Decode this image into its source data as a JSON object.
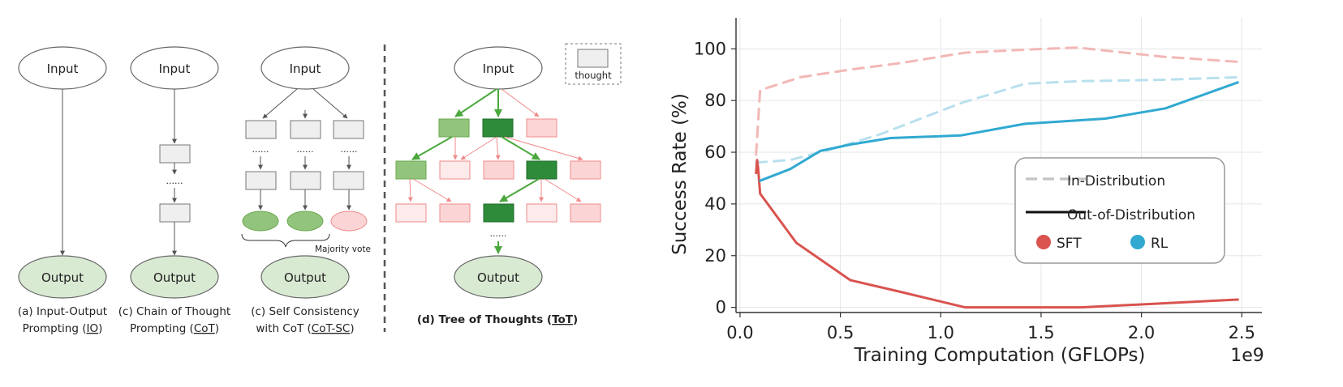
{
  "diagram": {
    "input_label": "Input",
    "output_label": "Output",
    "thought_legend": "thought",
    "majority_vote": "Majority vote",
    "dots": "......",
    "captions": {
      "a": {
        "line1": "(a) Input-Output",
        "line2_pre": "Prompting (",
        "line2_u": "IO",
        "line2_post": ")"
      },
      "b": {
        "line1": "(c) Chain of Thought",
        "line2_pre": "Prompting (",
        "line2_u": "CoT",
        "line2_post": ")"
      },
      "c": {
        "line1": "(c) Self Consistency",
        "line2_pre": "with CoT (",
        "line2_u": "CoT-SC",
        "line2_post": ")"
      },
      "d": {
        "pre": "(d) Tree of Thoughts (",
        "u": "ToT",
        "post": ")"
      }
    },
    "colors": {
      "io_fill": "#d9ead3",
      "box_fill": "#efefef",
      "good_dark": "#2e8b3a",
      "good_light": "#93c47d",
      "bad_fill": "#fbd5d5",
      "bad_light_fill": "#fdeaea",
      "bad_stroke": "#f08a8a",
      "green_arrow": "#4aa83c"
    }
  },
  "chart_data": {
    "type": "line",
    "xlabel": "Training Computation (GFLOPs)",
    "ylabel": "Success Rate (%)",
    "x_offset_label": "1e9",
    "xlim": [
      -0.02,
      2.6
    ],
    "ylim": [
      -2,
      112
    ],
    "xticks": [
      "0.0",
      "0.5",
      "1.0",
      "1.5",
      "2.0",
      "2.5"
    ],
    "xtick_values": [
      0.0,
      0.5,
      1.0,
      1.5,
      2.0,
      2.5
    ],
    "yticks": [
      "0",
      "20",
      "40",
      "60",
      "80",
      "100"
    ],
    "ytick_values": [
      0,
      20,
      40,
      60,
      80,
      100
    ],
    "grid": true,
    "legend": {
      "position": "center-right",
      "entries": [
        {
          "label": "In-Distribution",
          "style": "dashed"
        },
        {
          "label": "Out-of-Distribution",
          "style": "solid"
        },
        {
          "label": "SFT",
          "color": "#d9534f",
          "marker": "circle"
        },
        {
          "label": "RL",
          "color": "#31a9d1",
          "marker": "circle"
        }
      ]
    },
    "series": [
      {
        "name": "SFT",
        "style": "dashed",
        "color": "#f2b8b6",
        "x": [
          0.08,
          0.1,
          0.3,
          0.55,
          0.8,
          1.12,
          1.45,
          1.68,
          2.1,
          2.48
        ],
        "y": [
          59,
          84,
          89,
          92,
          94.5,
          98.5,
          99.8,
          100.5,
          97,
          95
        ]
      },
      {
        "name": "RL",
        "style": "dashed",
        "color": "#b9e0ee",
        "x": [
          0.08,
          0.25,
          0.45,
          0.7,
          1.1,
          1.42,
          1.7,
          2.1,
          2.48
        ],
        "y": [
          56,
          57,
          61,
          67,
          79,
          86.5,
          87.5,
          88,
          89
        ]
      },
      {
        "name": "SFT",
        "style": "solid",
        "color": "#d9534f",
        "x": [
          0.08,
          0.085,
          0.09,
          0.1,
          0.28,
          0.55,
          0.8,
          1.12,
          1.45,
          1.7,
          2.1,
          2.48
        ],
        "y": [
          52,
          57,
          54,
          44,
          25,
          10.5,
          6,
          0,
          0,
          0,
          1.5,
          3
        ]
      },
      {
        "name": "RL",
        "style": "solid",
        "color": "#31a9d1",
        "x": [
          0.1,
          0.25,
          0.4,
          0.55,
          0.75,
          1.1,
          1.42,
          1.82,
          2.12,
          2.48
        ],
        "y": [
          49,
          53.5,
          60.5,
          63,
          65.5,
          66.5,
          71,
          73,
          77,
          87
        ]
      }
    ]
  }
}
